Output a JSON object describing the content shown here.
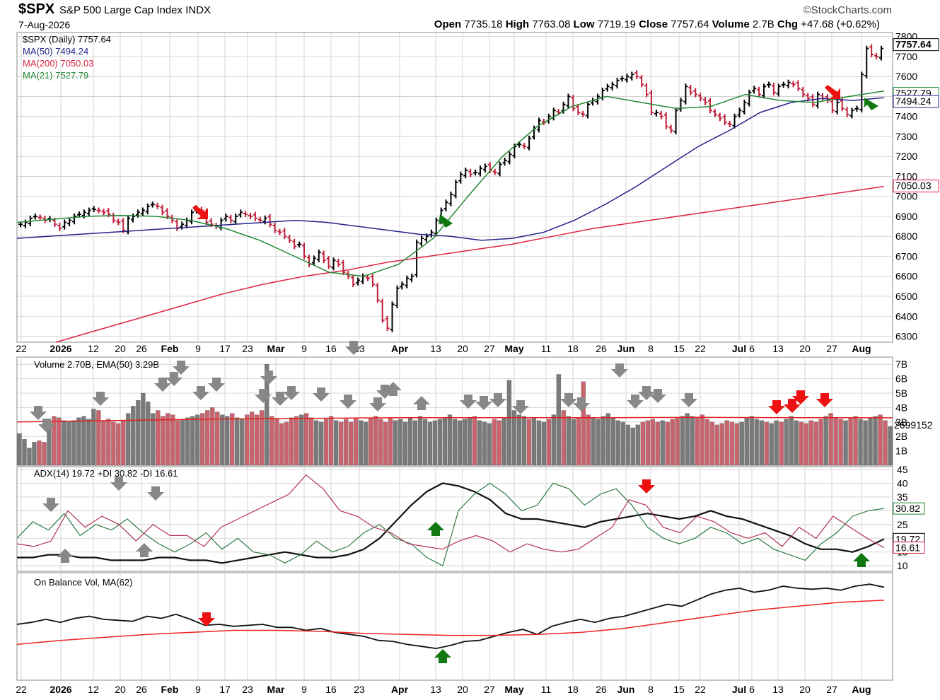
{
  "header": {
    "symbol": "$SPX",
    "name": "S&P 500 Large Cap Index",
    "exchange": "INDX",
    "date": "7-Aug-2026",
    "brand": "©StockCharts.com",
    "open_label": "Open",
    "open": "7735.18",
    "high_label": "High",
    "high": "7763.08",
    "low_label": "Low",
    "low": "7719.19",
    "close_label": "Close",
    "close": "7757.64",
    "volume_label": "Volume",
    "volume": "2.7B",
    "chg_label": "Chg",
    "chg": "+47.68 (+0.62%)"
  },
  "colors": {
    "up": "#000000",
    "down": "#c0203a",
    "ma50": "#222288",
    "ma200": "#dd2244",
    "ma21": "#228833",
    "vol_up": "#7a7a7a",
    "vol_down": "#c8646e",
    "arrow_green": "#117711",
    "arrow_red": "#ee1111",
    "arrow_gray": "#888888",
    "grid": "#cccccc"
  },
  "chart_data": [
    {
      "type": "line",
      "panel": "price",
      "title": "$SPX (Daily) 7757.64",
      "legend": [
        {
          "text": "$SPX (Daily) 7757.64",
          "color": "#000000"
        },
        {
          "text": "MA(50) 7494.24",
          "color": "#222288"
        },
        {
          "text": "MA(200) 7050.03",
          "color": "#dd2244"
        },
        {
          "text": "MA(21) 7527.79",
          "color": "#228833"
        }
      ],
      "y_ticks": [
        "7800",
        "7700",
        "7600",
        "7500",
        "7400",
        "7300",
        "7200",
        "7100",
        "7000",
        "6900",
        "6800",
        "6700",
        "6600",
        "6500",
        "6400",
        "6300"
      ],
      "ylim": [
        6270,
        7820
      ],
      "last_labels": [
        "7757.64",
        "7527.79",
        "7494.24",
        "7050.03"
      ],
      "x_ticks": [
        "22",
        "2026",
        "12",
        "20",
        "26",
        "Feb",
        "9",
        "17",
        "23",
        "Mar",
        "9",
        "16",
        "23",
        "Apr",
        "13",
        "20",
        "27",
        "May",
        "11",
        "18",
        "26",
        "Jun",
        "8",
        "15",
        "22",
        "Jul",
        "6",
        "13",
        "20",
        "27",
        "Aug"
      ],
      "close": [
        6860,
        6870,
        6890,
        6900,
        6895,
        6880,
        6885,
        6860,
        6840,
        6870,
        6880,
        6900,
        6910,
        6920,
        6930,
        6935,
        6930,
        6920,
        6910,
        6880,
        6870,
        6830,
        6890,
        6900,
        6920,
        6930,
        6950,
        6960,
        6950,
        6920,
        6900,
        6880,
        6840,
        6860,
        6880,
        6920,
        6940,
        6930,
        6870,
        6860,
        6850,
        6880,
        6900,
        6880,
        6900,
        6920,
        6910,
        6900,
        6890,
        6880,
        6890,
        6860,
        6830,
        6820,
        6800,
        6780,
        6750,
        6760,
        6700,
        6660,
        6690,
        6720,
        6680,
        6650,
        6680,
        6660,
        6620,
        6600,
        6560,
        6580,
        6600,
        6590,
        6560,
        6480,
        6380,
        6340,
        6460,
        6540,
        6560,
        6590,
        6600,
        6770,
        6790,
        6800,
        6820,
        6880,
        6930,
        6970,
        7010,
        7070,
        7110,
        7130,
        7110,
        7120,
        7140,
        7150,
        7130,
        7120,
        7160,
        7180,
        7210,
        7250,
        7260,
        7250,
        7290,
        7340,
        7380,
        7370,
        7400,
        7430,
        7420,
        7460,
        7500,
        7440,
        7420,
        7410,
        7460,
        7480,
        7500,
        7530,
        7550,
        7560,
        7580,
        7590,
        7600,
        7610,
        7600,
        7560,
        7510,
        7420,
        7420,
        7400,
        7350,
        7330,
        7430,
        7480,
        7550,
        7520,
        7510,
        7490,
        7470,
        7430,
        7410,
        7390,
        7370,
        7360,
        7400,
        7430,
        7470,
        7520,
        7540,
        7510,
        7550,
        7560,
        7520,
        7550,
        7560,
        7570,
        7560,
        7540,
        7510,
        7490,
        7460,
        7510,
        7490,
        7480,
        7430,
        7470,
        7440,
        7410,
        7430,
        7440,
        7610,
        7740,
        7710,
        7700,
        7740
      ],
      "series": [
        {
          "name": "MA(50)",
          "values": [
            6790,
            6800,
            6810,
            6820,
            6830,
            6840,
            6850,
            6860,
            6870,
            6880,
            6870,
            6850,
            6830,
            6810,
            6800,
            6780,
            6790,
            6820,
            6880,
            6960,
            7050,
            7150,
            7250,
            7330,
            7420,
            7470,
            7490,
            7480,
            7494.24
          ]
        },
        {
          "name": "MA(200)",
          "values": [
            6270,
            6330,
            6390,
            6450,
            6510,
            6560,
            6600,
            6630,
            6670,
            6700,
            6730,
            6760,
            6800,
            6840,
            6870,
            6900,
            6930,
            6960,
            6990,
            7020,
            7050.03
          ]
        },
        {
          "name": "MA(21)",
          "values": [
            6870,
            6885,
            6900,
            6905,
            6900,
            6880,
            6840,
            6780,
            6700,
            6620,
            6600,
            6660,
            6790,
            7000,
            7200,
            7350,
            7450,
            7500,
            7470,
            7440,
            7450,
            7510,
            7480,
            7470,
            7500,
            7527.79
          ]
        }
      ]
    },
    {
      "type": "bar",
      "panel": "volume",
      "title": "Volume 2.70B, EMA(50) 3.29B",
      "y_ticks": [
        "7B",
        "6B",
        "5B",
        "4B",
        "3B",
        "2B",
        "1B"
      ],
      "ylim": [
        0,
        7.5
      ],
      "last_label": "2699152",
      "values": [
        2.2,
        1.8,
        1.2,
        1.6,
        1.7,
        1.6,
        3.0,
        3.4,
        3.3,
        3.1,
        3.0,
        3.1,
        3.3,
        3.4,
        3.2,
        3.9,
        3.8,
        3.1,
        3.2,
        3.0,
        2.9,
        3.1,
        3.6,
        4.1,
        4.5,
        5.0,
        4.4,
        3.6,
        3.8,
        3.4,
        3.6,
        3.5,
        3.1,
        3.2,
        3.3,
        3.4,
        3.5,
        3.6,
        3.8,
        4.0,
        3.7,
        3.5,
        3.4,
        3.6,
        3.3,
        3.2,
        3.5,
        3.7,
        3.5,
        3.8,
        7.0,
        3.4,
        3.2,
        2.9,
        3.0,
        3.3,
        3.4,
        3.5,
        3.6,
        3.3,
        3.1,
        3.0,
        3.2,
        3.4,
        3.1,
        3.0,
        3.2,
        3.0,
        3.3,
        3.1,
        3.0,
        3.3,
        3.4,
        3.2,
        3.0,
        3.3,
        3.1,
        3.2,
        3.0,
        3.3,
        3.1,
        3.4,
        3.2,
        3.0,
        3.1,
        3.2,
        3.3,
        3.5,
        3.2,
        3.1,
        3.2,
        3.3,
        3.4,
        3.1,
        3.0,
        2.9,
        3.2,
        3.1,
        3.3,
        5.9,
        3.8,
        3.5,
        3.4,
        3.2,
        3.3,
        3.1,
        3.0,
        3.2,
        3.5,
        6.3,
        3.8,
        3.4,
        3.2,
        3.3,
        5.8,
        3.5,
        3.3,
        3.2,
        3.4,
        3.6,
        3.3,
        3.1,
        3.0,
        2.8,
        2.6,
        2.8,
        3.0,
        3.1,
        3.2,
        3.0,
        3.1,
        3.0,
        3.2,
        3.3,
        3.4,
        3.6,
        3.4,
        3.3,
        3.5,
        3.2,
        3.0,
        2.8,
        2.9,
        3.1,
        3.0,
        2.9,
        3.0,
        3.3,
        3.4,
        3.2,
        3.1,
        3.0,
        2.9,
        3.1,
        3.0,
        3.2,
        3.4,
        3.1,
        3.0,
        2.9,
        3.1,
        3.0,
        3.2,
        3.4,
        3.6,
        3.3,
        3.2,
        3.1,
        3.3,
        3.4,
        3.2,
        3.1,
        3.3,
        3.4,
        3.5,
        3.1,
        2.7
      ],
      "series": [
        {
          "name": "EMA(50)",
          "values": [
            3.0,
            3.1,
            3.2,
            3.25,
            3.3,
            3.3,
            3.3,
            3.32,
            3.3,
            3.29
          ]
        }
      ]
    },
    {
      "type": "line",
      "panel": "adx",
      "title": "ADX(14) 19.72 +DI 30.82 -DI 16.61",
      "y_ticks": [
        "45",
        "40",
        "35",
        "30",
        "25",
        "20",
        "15",
        "10"
      ],
      "ylim": [
        8,
        46
      ],
      "last_labels": [
        "30.82",
        "19.72",
        "16.61"
      ],
      "series": [
        {
          "name": "ADX(14)",
          "values": [
            13,
            13,
            14,
            14,
            13,
            13,
            12,
            12,
            12,
            13,
            13,
            12,
            12,
            11,
            12,
            13,
            14,
            15,
            14,
            13,
            13,
            14,
            16,
            20,
            26,
            32,
            37,
            40,
            39,
            37,
            34,
            29,
            27,
            27,
            26,
            25,
            24,
            26,
            27,
            28,
            29,
            28,
            27,
            28,
            30,
            28,
            27,
            25,
            23,
            21,
            18,
            16,
            16,
            15,
            17,
            19.72
          ]
        },
        {
          "name": "+DI",
          "values": [
            20,
            26,
            23,
            29,
            21,
            25,
            23,
            27,
            22,
            18,
            15,
            18,
            22,
            16,
            20,
            15,
            14,
            11,
            14,
            19,
            15,
            17,
            22,
            25,
            20,
            18,
            13,
            10,
            30,
            36,
            40,
            36,
            30,
            32,
            40,
            38,
            32,
            36,
            38,
            32,
            24,
            20,
            18,
            20,
            24,
            22,
            18,
            20,
            16,
            14,
            12,
            18,
            22,
            28,
            30,
            30.82
          ]
        },
        {
          "name": "-DI",
          "values": [
            18,
            17,
            19,
            30,
            24,
            28,
            25,
            19,
            25,
            21,
            21,
            17,
            24,
            27,
            30,
            33,
            36,
            43,
            38,
            30,
            28,
            24,
            22,
            18,
            17,
            16,
            19,
            21,
            19,
            15,
            18,
            16,
            15,
            16,
            20,
            24,
            34,
            32,
            24,
            22,
            28,
            26,
            22,
            20,
            22,
            17,
            24,
            20,
            28,
            24,
            20,
            16.61
          ]
        }
      ]
    },
    {
      "type": "line",
      "panel": "obv",
      "title": "On Balance Vol, MA(62)",
      "series": [
        {
          "name": "On Balance Vol",
          "values": [
            50,
            52,
            55,
            52,
            56,
            58,
            55,
            54,
            53,
            58,
            56,
            60,
            55,
            49,
            50,
            48,
            49,
            50,
            47,
            47,
            44,
            46,
            42,
            40,
            38,
            34,
            33,
            30,
            28,
            26,
            29,
            33,
            34,
            38,
            42,
            45,
            40,
            48,
            52,
            55,
            52,
            56,
            58,
            62,
            66,
            70,
            68,
            74,
            80,
            84,
            86,
            82,
            84,
            88,
            86,
            85,
            86,
            84,
            88,
            90,
            87
          ]
        },
        {
          "name": "MA(62)",
          "values": [
            30,
            34,
            37,
            40,
            42,
            44,
            44,
            43,
            41,
            40,
            39,
            39,
            40,
            42,
            46,
            52,
            58,
            64,
            68,
            72,
            74
          ]
        }
      ]
    }
  ]
}
